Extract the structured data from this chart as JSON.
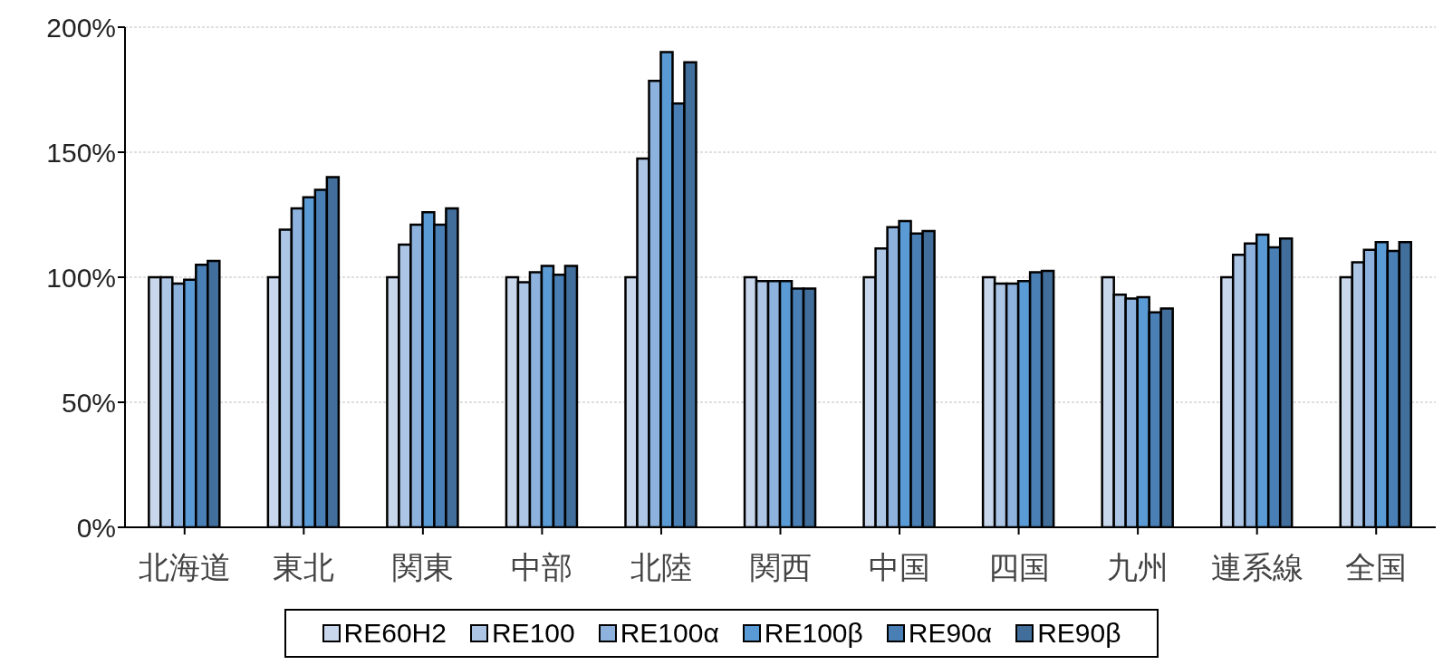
{
  "chart_data": {
    "type": "bar",
    "categories": [
      "北海道",
      "東北",
      "関東",
      "中部",
      "北陸",
      "関西",
      "中国",
      "四国",
      "九州",
      "連系線",
      "全国"
    ],
    "series": [
      {
        "name": "RE60H2",
        "color": "#c9d7ec",
        "values": [
          100,
          100,
          100,
          100,
          100,
          100,
          100,
          100,
          100,
          100,
          100
        ]
      },
      {
        "name": "RE100",
        "color": "#adc6e5",
        "values": [
          100,
          119,
          113,
          98,
          147.5,
          98.5,
          111.5,
          97.5,
          93,
          109,
          106
        ]
      },
      {
        "name": "RE100α",
        "color": "#8db2de",
        "values": [
          97.5,
          127.5,
          121,
          102,
          178.5,
          98.5,
          120,
          97.5,
          91.5,
          113.5,
          111
        ]
      },
      {
        "name": "RE100β",
        "color": "#5b9bd5",
        "values": [
          99,
          132,
          126,
          104.5,
          190,
          98.5,
          122.5,
          98.5,
          92,
          117,
          114
        ]
      },
      {
        "name": "RE90α",
        "color": "#4a7fb5",
        "values": [
          105,
          135,
          121,
          101,
          169.5,
          95.5,
          117.5,
          102,
          86,
          112,
          110.5
        ]
      },
      {
        "name": "RE90β",
        "color": "#416e9a",
        "values": [
          106.5,
          140,
          127.5,
          104.5,
          186,
          95.5,
          118.5,
          102.5,
          87.5,
          115.5,
          114
        ]
      }
    ],
    "ylim": [
      0,
      200
    ],
    "yticks": [
      {
        "value": 0,
        "label": "0%"
      },
      {
        "value": 50,
        "label": "50%"
      },
      {
        "value": 100,
        "label": "100%"
      },
      {
        "value": 150,
        "label": "150%"
      },
      {
        "value": 200,
        "label": "200%"
      }
    ],
    "grid": "y",
    "legend": "bottom"
  }
}
